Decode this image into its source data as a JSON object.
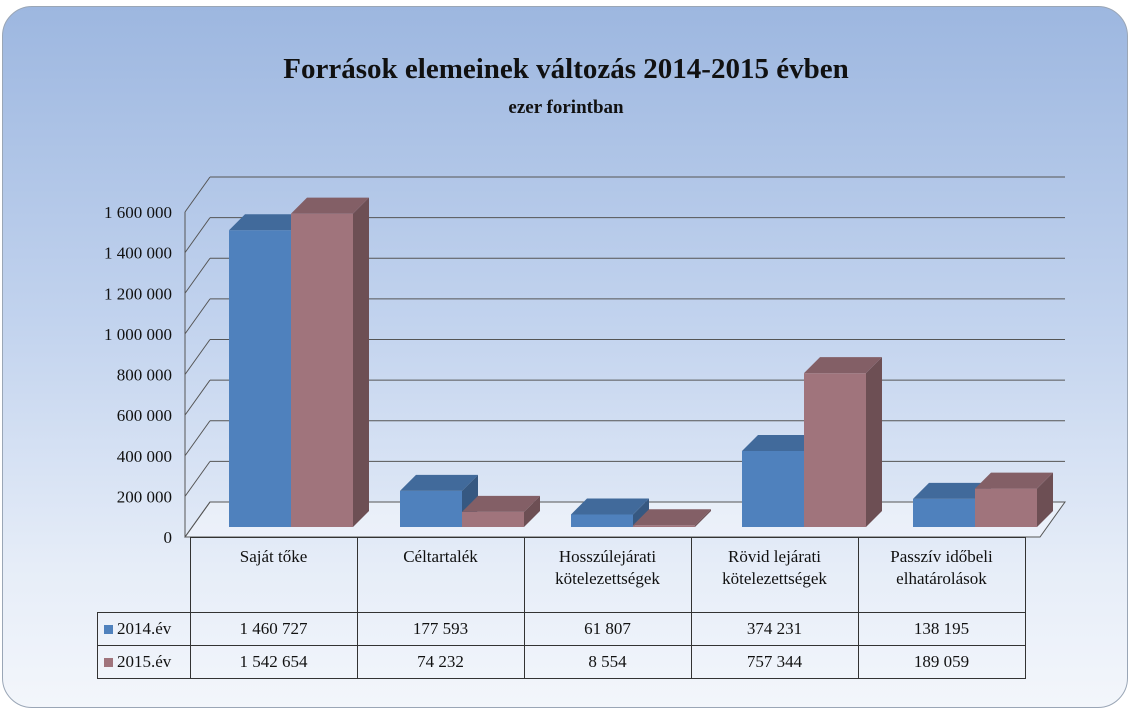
{
  "chart_data": {
    "type": "bar3d",
    "title": "Források elemeinek változás 2014-2015 évben",
    "subtitle": "ezer forintban",
    "categories": [
      "Saját tőke",
      "Céltartalék",
      "Hosszúlejárati kötelezettségek",
      "Rövid lejárati kötelezettségek",
      "Passzív időbeli elhatárolások"
    ],
    "series": [
      {
        "name": "2014.év",
        "color": "#4f81bd",
        "values": [
          1460727,
          177593,
          61807,
          374231,
          138195
        ],
        "value_labels": [
          "1 460 727",
          "177 593",
          "61 807",
          "374 231",
          "138 195"
        ]
      },
      {
        "name": "2015.év",
        "color": "#a0747c",
        "values": [
          1542654,
          74232,
          8554,
          757344,
          189059
        ],
        "value_labels": [
          "1 542 654",
          "74 232",
          "8 554",
          "757 344",
          "189 059"
        ]
      }
    ],
    "ylim": [
      0,
      1600000
    ],
    "yticks": [
      0,
      {
        "value": 200000,
        "label": "200 000"
      },
      {
        "value": 400000,
        "label": "400 000"
      },
      {
        "value": 600000,
        "label": "600 000"
      },
      {
        "value": 800000,
        "label": "800 000"
      },
      {
        "value": 1000000,
        "label": "1 000 000"
      },
      {
        "value": 1200000,
        "label": "1 200 000"
      },
      {
        "value": 1400000,
        "label": "1 400 000"
      },
      {
        "value": 1600000,
        "label": "1 600 000"
      }
    ],
    "grid": true
  }
}
